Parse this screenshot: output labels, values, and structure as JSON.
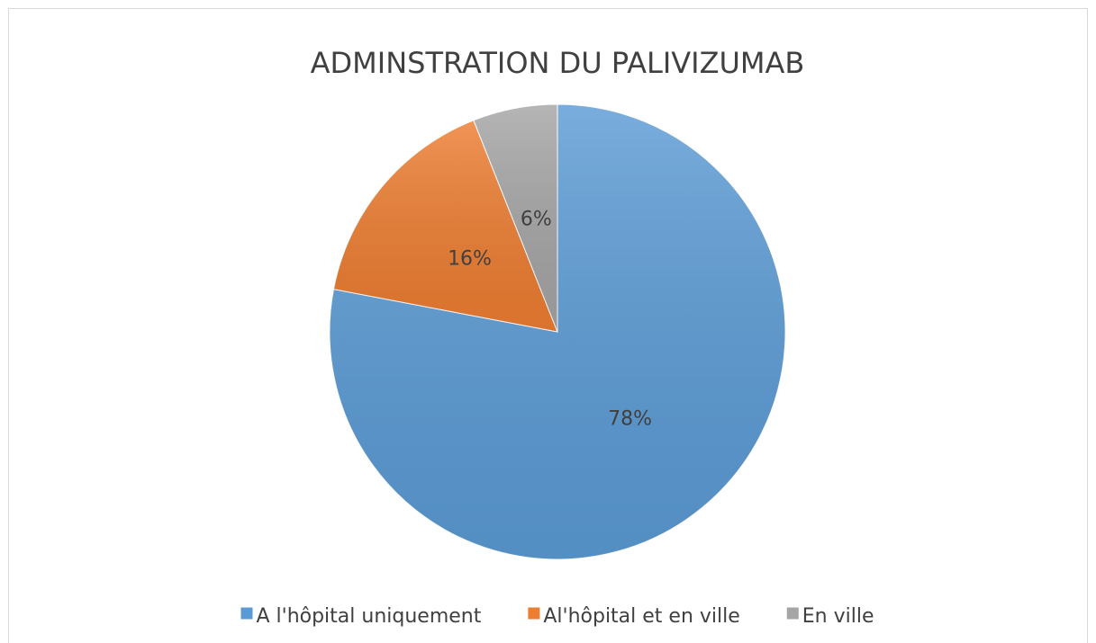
{
  "chart_data": {
    "type": "pie",
    "title": "ADMINSTRATION DU PALIVIZUMAB",
    "categories": [
      "A l'hôpital uniquement",
      "Al'hôpital et en ville",
      "En ville"
    ],
    "values": [
      78,
      16,
      6
    ],
    "value_labels": [
      "78%",
      "16%",
      "6%"
    ],
    "colors": [
      "#5b9bd5",
      "#ed7d31",
      "#a5a5a5"
    ],
    "legend": "bottom"
  }
}
